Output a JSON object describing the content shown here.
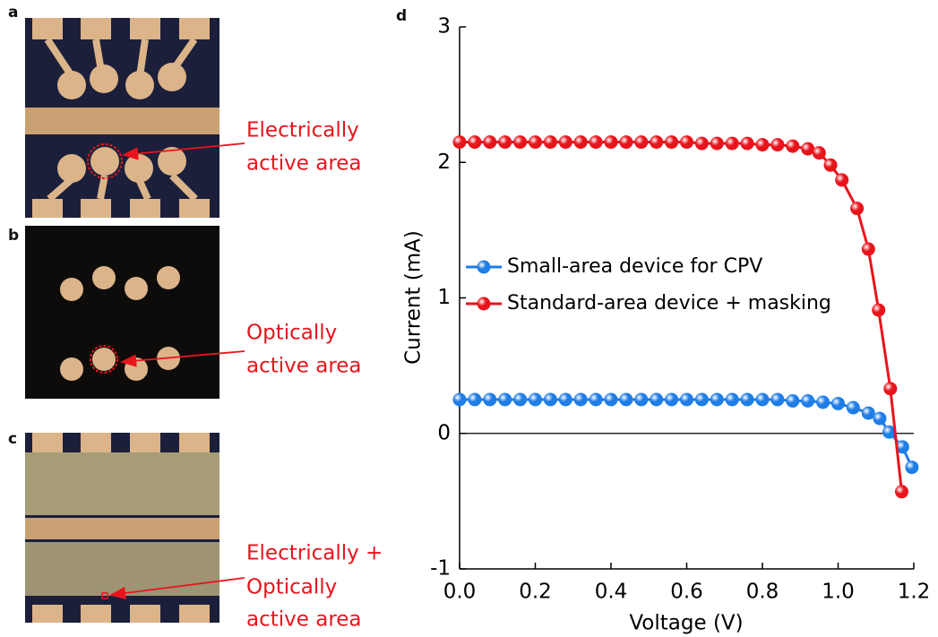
{
  "panels": [
    {
      "label": "a",
      "annotation": [
        "Electrically",
        "active area"
      ]
    },
    {
      "label": "b",
      "annotation": [
        "Optically",
        "active area"
      ]
    },
    {
      "label": "c",
      "annotation": [
        "Electrically +",
        "Optically",
        "active area"
      ]
    }
  ],
  "chart_data": {
    "type": "line",
    "panel_label": "d",
    "x_label": "Voltage (V)",
    "y_label": "Current (mA)",
    "xlim": [
      0,
      1.2
    ],
    "ylim": [
      -1,
      3
    ],
    "xticks": [
      {
        "value": 0,
        "label": "0.0"
      },
      0.2,
      0.4,
      0.6,
      0.8,
      {
        "value": 1,
        "label": "1.0"
      },
      1.2
    ],
    "yticks": [
      -1,
      0,
      1,
      2,
      3
    ],
    "zero_line": true,
    "legend": "left",
    "series": [
      {
        "name": "Small-area device for CPV",
        "color": "#1f7de6",
        "x": [
          0,
          0.04,
          0.08,
          0.12,
          0.16,
          0.2,
          0.24,
          0.28,
          0.32,
          0.36,
          0.4,
          0.44,
          0.48,
          0.52,
          0.56,
          0.6,
          0.64,
          0.68,
          0.72,
          0.76,
          0.8,
          0.84,
          0.88,
          0.92,
          0.96,
          1.0,
          1.04,
          1.08,
          1.11,
          1.135,
          1.17,
          1.195
        ],
        "values": [
          0.25,
          0.25,
          0.25,
          0.25,
          0.25,
          0.25,
          0.25,
          0.25,
          0.25,
          0.25,
          0.25,
          0.25,
          0.25,
          0.25,
          0.25,
          0.25,
          0.25,
          0.25,
          0.25,
          0.25,
          0.25,
          0.25,
          0.24,
          0.24,
          0.23,
          0.22,
          0.19,
          0.15,
          0.11,
          0.01,
          -0.1,
          -0.25
        ]
      },
      {
        "name": "Standard-area device + masking",
        "color": "#e8141c",
        "x": [
          0,
          0.04,
          0.08,
          0.12,
          0.16,
          0.2,
          0.24,
          0.28,
          0.32,
          0.36,
          0.4,
          0.44,
          0.48,
          0.52,
          0.56,
          0.6,
          0.64,
          0.68,
          0.72,
          0.76,
          0.8,
          0.84,
          0.88,
          0.92,
          0.95,
          0.98,
          1.01,
          1.05,
          1.08,
          1.107,
          1.138,
          1.168
        ],
        "values": [
          2.15,
          2.15,
          2.15,
          2.15,
          2.15,
          2.15,
          2.15,
          2.15,
          2.15,
          2.15,
          2.15,
          2.15,
          2.15,
          2.15,
          2.15,
          2.15,
          2.14,
          2.14,
          2.14,
          2.14,
          2.13,
          2.13,
          2.12,
          2.1,
          2.07,
          1.98,
          1.87,
          1.66,
          1.36,
          0.91,
          0.33,
          -0.43
        ]
      }
    ]
  }
}
